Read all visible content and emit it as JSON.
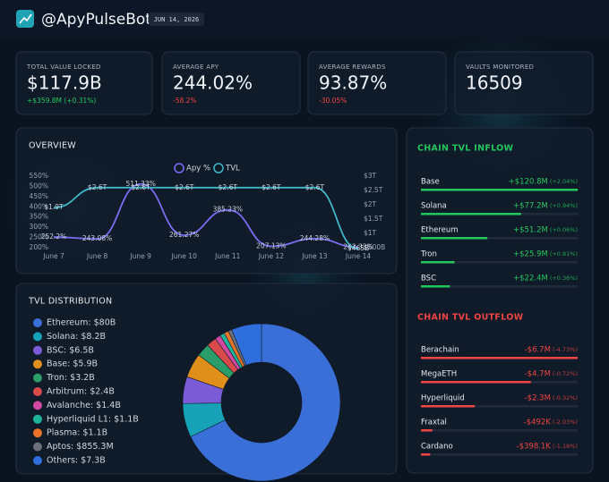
{
  "header": {
    "title": "@ApyPulseBot",
    "date": "JUN 14, 2026"
  },
  "kpis": [
    {
      "label": "TOTAL VALUE LOCKED",
      "value": "$117.9B",
      "change": "+$359.8M (+0.31%)",
      "trend": "up"
    },
    {
      "label": "AVERAGE APY",
      "value": "244.02%",
      "change": "-58.2%",
      "trend": "down"
    },
    {
      "label": "AVERAGE REWARDS",
      "value": "93.87%",
      "change": "-30.05%",
      "trend": "down"
    },
    {
      "label": "VAULTS MONITORED",
      "value": "16509"
    }
  ],
  "chart_data": [
    {
      "type": "line",
      "title": "OVERVIEW",
      "categories": [
        "June 7",
        "June 8",
        "June 9",
        "June 10",
        "June 11",
        "June 12",
        "June 13",
        "June 14"
      ],
      "series": [
        {
          "name": "Apy %",
          "color": "#7c6cf2",
          "values": [
            252.2,
            243.08,
            511.33,
            261.27,
            385.23,
            207.13,
            244.28,
            202.33
          ],
          "value_labels": [
            "252.2%",
            "243.08%",
            "511.33%",
            "261.27%",
            "385.23%",
            "207.13%",
            "244.28%",
            "202.33%"
          ]
        },
        {
          "name": "TVL",
          "color": "#3fb6c8",
          "axis": "y2",
          "values": [
            1900,
            2600,
            2600,
            2600,
            2600,
            2600,
            2600,
            465
          ],
          "value_labels": [
            "$1.9T",
            "$2.6T",
            "$2.6T",
            "$2.6T",
            "$2.6T",
            "$2.6T",
            "$2.6T",
            "$465B"
          ]
        }
      ],
      "ylim": [
        200,
        550
      ],
      "yticks": [
        {
          "value": 200,
          "label": "200%"
        },
        {
          "value": 250,
          "label": "250%"
        },
        {
          "value": 300,
          "label": "300%"
        },
        {
          "value": 350,
          "label": "350%"
        },
        {
          "value": 400,
          "label": "400%"
        },
        {
          "value": 450,
          "label": "450%"
        },
        {
          "value": 500,
          "label": "500%"
        },
        {
          "value": 550,
          "label": "550%"
        }
      ],
      "y2lim": [
        500,
        3000
      ],
      "y2ticks": [
        {
          "value": 500,
          "label": "$500B"
        },
        {
          "value": 1000,
          "label": "$1T"
        },
        {
          "value": 1500,
          "label": "$1.5T"
        },
        {
          "value": 2000,
          "label": "$2T"
        },
        {
          "value": 2500,
          "label": "$2.5T"
        },
        {
          "value": 3000,
          "label": "$3T"
        }
      ]
    },
    {
      "type": "pie",
      "title": "TVL DISTRIBUTION",
      "donut": true,
      "categories": [
        "Ethereum: $80B",
        "Solana: $8.2B",
        "BSC: $6.5B",
        "Base: $5.9B",
        "Tron: $3.2B",
        "Arbitrum: $2.4B",
        "Avalanche: $1.4B",
        "Hyperliquid L1: $1.1B",
        "Plasma: $1.1B",
        "Aptos: $855.3M",
        "Others: $7.3B"
      ],
      "values": [
        80,
        8.2,
        6.5,
        5.9,
        3.2,
        2.4,
        1.4,
        1.1,
        1.1,
        0.8553,
        7.3
      ],
      "colors": [
        "#3b6fd8",
        "#17a2b8",
        "#7b5cd6",
        "#e0901a",
        "#2a9d6a",
        "#d94a4a",
        "#d048a0",
        "#1fb39a",
        "#e8742a",
        "#6b6f7a",
        "#2f6fdd"
      ]
    }
  ],
  "inflow": {
    "title": "CHAIN TVL INFLOW",
    "color": "#22c55e",
    "rows": [
      {
        "name": "Base",
        "value": 120.8,
        "value_label": "+$120.8M",
        "change": "(+2.04%)"
      },
      {
        "name": "Solana",
        "value": 77.2,
        "value_label": "+$77.2M",
        "change": "(+0.94%)"
      },
      {
        "name": "Ethereum",
        "value": 51.2,
        "value_label": "+$51.2M",
        "change": "(+0.06%)"
      },
      {
        "name": "Tron",
        "value": 25.9,
        "value_label": "+$25.9M",
        "change": "(+0.81%)"
      },
      {
        "name": "BSC",
        "value": 22.4,
        "value_label": "+$22.4M",
        "change": "(+0.36%)"
      }
    ]
  },
  "outflow": {
    "title": "CHAIN TVL OUTFLOW",
    "color": "#ef4444",
    "rows": [
      {
        "name": "Berachain",
        "value": -6.7,
        "value_label": "-$6.7M",
        "change": "(-4.73%)"
      },
      {
        "name": "MegaETH",
        "value": -4.7,
        "value_label": "-$4.7M",
        "change": "(-0.72%)"
      },
      {
        "name": "Hyperliquid",
        "value": -2.3,
        "value_label": "-$2.3M",
        "change": "(-0.32%)"
      },
      {
        "name": "Fraxtal",
        "value": -0.492,
        "value_label": "-$492K",
        "change": "(-2.03%)"
      },
      {
        "name": "Cardano",
        "value": -0.3981,
        "value_label": "-$398.1K",
        "change": "(-1.18%)"
      }
    ]
  }
}
